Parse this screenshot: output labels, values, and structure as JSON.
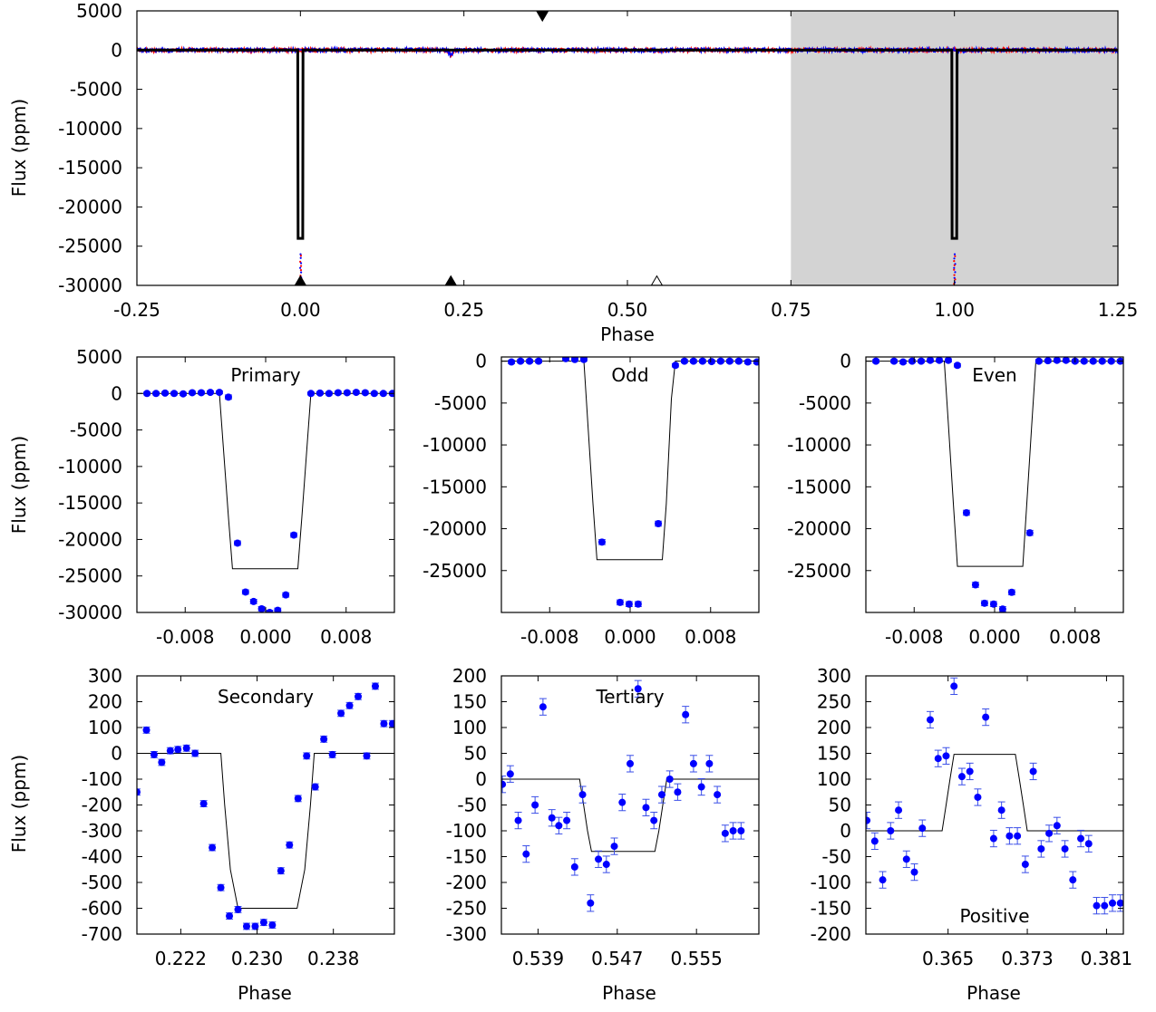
{
  "figure": {
    "ylabel": "Flux (ppm)",
    "xlabel": "Phase"
  },
  "chart_data": [
    {
      "id": "full",
      "type": "scatter",
      "title": "",
      "xlabel": "Phase",
      "ylabel": "Flux (ppm)",
      "xlim": [
        -0.25,
        1.25
      ],
      "ylim": [
        -30000,
        5000
      ],
      "xticks": [
        -0.25,
        0.0,
        0.25,
        0.5,
        0.75,
        1.0,
        1.25
      ],
      "xtick_labels": [
        "-0.25",
        "0.00",
        "0.25",
        "0.50",
        "0.75",
        "1.00",
        "1.25"
      ],
      "yticks": [
        5000,
        0,
        -5000,
        -10000,
        -15000,
        -20000,
        -25000,
        -30000
      ],
      "ytick_labels": [
        "5000",
        "0",
        "-5000",
        "-10000",
        "-15000",
        "-20000",
        "-25000",
        "-30000"
      ],
      "shaded_region": [
        0.75,
        1.25
      ],
      "shade_color": "#d3d3d3",
      "model": {
        "color": "#000000",
        "x": [
          -0.25,
          -0.004,
          -0.0035,
          0.0035,
          0.004,
          0.996,
          0.9965,
          1.0035,
          1.004,
          1.25
        ],
        "y": [
          0,
          0,
          -24000,
          -24000,
          0,
          0,
          -24000,
          -24000,
          0,
          0
        ]
      },
      "series": [
        {
          "color": "#ff0000",
          "baseline": 0,
          "scatter": 250,
          "dips": [
            [
              0.23,
              -600
            ],
            [
              0.545,
              -140
            ]
          ]
        },
        {
          "color": "#0000ff",
          "baseline": 0,
          "scatter": 250,
          "dips": [
            [
              0.23,
              -600
            ],
            [
              0.545,
              -140
            ]
          ]
        }
      ],
      "markers": [
        {
          "symbol": "triangle-down-filled",
          "x": 0.37,
          "y": 4200
        },
        {
          "symbol": "triangle-up-filled",
          "x": 0.0,
          "y": -29500
        },
        {
          "symbol": "triangle-up-filled",
          "x": 0.23,
          "y": -29500
        },
        {
          "symbol": "triangle-up-open",
          "x": 0.545,
          "y": -29500
        }
      ]
    },
    {
      "id": "primary",
      "type": "scatter",
      "title": "Primary",
      "xlabel": "",
      "ylabel": "Flux (ppm)",
      "xlim": [
        -0.0128,
        0.0128
      ],
      "ylim": [
        -30000,
        5000
      ],
      "xticks": [
        -0.008,
        0.0,
        0.008
      ],
      "xtick_labels": [
        "-0.008",
        "0.000",
        "0.008"
      ],
      "yticks": [
        5000,
        0,
        -5000,
        -10000,
        -15000,
        -20000,
        -25000,
        -30000
      ],
      "ytick_labels": [
        "5000",
        "0",
        "-5000",
        "-10000",
        "-15000",
        "-20000",
        "-25000",
        "-30000"
      ],
      "model": {
        "x": [
          -0.0128,
          -0.0046,
          -0.0042,
          -0.0037,
          -0.0033,
          0.0032,
          0.0036,
          0.0041,
          0.0045,
          0.0128
        ],
        "y": [
          0,
          0,
          -7500,
          -17000,
          -24000,
          -24000,
          -17000,
          -7500,
          0,
          0
        ]
      },
      "points": {
        "x": [
          -0.0118,
          -0.0109,
          -0.01,
          -0.0091,
          -0.0082,
          -0.0073,
          -0.0064,
          -0.0055,
          -0.0046,
          -0.0037,
          -0.0028,
          -0.002,
          -0.0012,
          -0.0004,
          0.0004,
          0.0012,
          0.002,
          0.0028,
          0.0045,
          0.0054,
          0.0063,
          0.0072,
          0.0081,
          0.009,
          0.0099,
          0.0108,
          0.0117,
          0.0126
        ],
        "y": [
          0,
          0,
          50,
          0,
          -50,
          100,
          100,
          150,
          150,
          -500,
          -20500,
          -27200,
          -28500,
          -29500,
          -30000,
          -29700,
          -27600,
          -19400,
          0,
          50,
          0,
          100,
          100,
          150,
          100,
          0,
          0,
          0
        ],
        "err": [
          200,
          200,
          200,
          200,
          200,
          200,
          200,
          200,
          200,
          300,
          300,
          300,
          300,
          300,
          300,
          300,
          300,
          300,
          200,
          200,
          200,
          200,
          200,
          200,
          200,
          200,
          200,
          200
        ]
      }
    },
    {
      "id": "odd",
      "type": "scatter",
      "title": "Odd",
      "xlabel": "",
      "ylabel": "",
      "xlim": [
        -0.0128,
        0.0128
      ],
      "ylim": [
        -30000,
        500
      ],
      "xticks": [
        -0.008,
        0.0,
        0.008
      ],
      "xtick_labels": [
        "-0.008",
        "0.000",
        "0.008"
      ],
      "yticks": [
        0,
        -5000,
        -10000,
        -15000,
        -20000,
        -25000
      ],
      "ytick_labels": [
        "0",
        "-5000",
        "-10000",
        "-15000",
        "-20000",
        "-25000"
      ],
      "model": {
        "x": [
          -0.0128,
          -0.0046,
          -0.0042,
          -0.0037,
          -0.0033,
          0.0032,
          0.0036,
          0.0041,
          0.0045,
          0.0128
        ],
        "y": [
          0,
          0,
          -7500,
          -17000,
          -23700,
          -23700,
          -17000,
          -4500,
          0,
          0
        ]
      },
      "points": {
        "x": [
          -0.0118,
          -0.0109,
          -0.01,
          -0.0091,
          -0.0064,
          -0.0055,
          -0.0046,
          -0.0028,
          -0.001,
          -0.0001,
          0.0008,
          0.0028,
          0.0045,
          0.0054,
          0.0063,
          0.0072,
          0.0081,
          0.009,
          0.0099,
          0.0108,
          0.0117,
          0.0126
        ],
        "y": [
          -100,
          0,
          0,
          0,
          300,
          200,
          200,
          -21600,
          -28800,
          -29000,
          -29000,
          -19400,
          -500,
          0,
          0,
          0,
          -50,
          0,
          0,
          0,
          -100,
          -100
        ],
        "err": [
          200,
          200,
          200,
          200,
          200,
          200,
          200,
          300,
          300,
          300,
          300,
          300,
          200,
          200,
          200,
          200,
          200,
          200,
          200,
          200,
          200,
          200
        ]
      }
    },
    {
      "id": "even",
      "type": "scatter",
      "title": "Even",
      "xlabel": "",
      "ylabel": "",
      "xlim": [
        -0.0128,
        0.0128
      ],
      "ylim": [
        -30000,
        500
      ],
      "xticks": [
        -0.008,
        0.0,
        0.008
      ],
      "xtick_labels": [
        "-0.008",
        "0.000",
        "0.008"
      ],
      "yticks": [
        0,
        -5000,
        -10000,
        -15000,
        -20000,
        -25000
      ],
      "ytick_labels": [
        "0",
        "-5000",
        "-10000",
        "-15000",
        "-20000",
        "-25000"
      ],
      "model": {
        "x": [
          -0.0128,
          -0.005,
          -0.0046,
          -0.0041,
          -0.0037,
          0.0028,
          0.0032,
          0.0037,
          0.0041,
          0.0128
        ],
        "y": [
          0,
          0,
          -7500,
          -17000,
          -24500,
          -24500,
          -17000,
          -7500,
          0,
          0
        ]
      },
      "points": {
        "x": [
          -0.0118,
          -0.01,
          -0.0091,
          -0.0082,
          -0.0073,
          -0.0064,
          -0.0055,
          -0.0046,
          -0.0037,
          -0.0028,
          -0.0019,
          -0.001,
          -0.0001,
          0.0008,
          0.0017,
          0.0035,
          0.0044,
          0.0053,
          0.0062,
          0.0071,
          0.008,
          0.0089,
          0.0098,
          0.0107,
          0.0116,
          0.0125
        ],
        "y": [
          0,
          0,
          -100,
          0,
          0,
          100,
          100,
          100,
          -500,
          -18100,
          -26700,
          -28900,
          -29000,
          -29600,
          -27600,
          -20500,
          0,
          50,
          100,
          100,
          0,
          0,
          0,
          0,
          0,
          0
        ],
        "err": [
          200,
          200,
          200,
          200,
          200,
          200,
          200,
          200,
          200,
          300,
          300,
          300,
          300,
          300,
          300,
          300,
          200,
          200,
          200,
          200,
          200,
          200,
          200,
          200,
          200,
          200
        ]
      }
    },
    {
      "id": "secondary",
      "type": "scatter",
      "title": "Secondary",
      "xlabel": "Phase",
      "ylabel": "Flux (ppm)",
      "xlim": [
        0.2174,
        0.2444
      ],
      "ylim": [
        -700,
        300
      ],
      "xticks": [
        0.222,
        0.23,
        0.238
      ],
      "xtick_labels": [
        "0.222",
        "0.230",
        "0.238"
      ],
      "yticks": [
        300,
        200,
        100,
        0,
        -100,
        -200,
        -300,
        -400,
        -500,
        -600,
        -700
      ],
      "ytick_labels": [
        "300",
        "200",
        "100",
        "0",
        "-100",
        "-200",
        "-300",
        "-400",
        "-500",
        "-600",
        "-700"
      ],
      "model": {
        "x": [
          0.2174,
          0.2262,
          0.2266,
          0.2272,
          0.228,
          0.2342,
          0.235,
          0.2356,
          0.236,
          0.2444
        ],
        "y": [
          0,
          0,
          -200,
          -450,
          -600,
          -600,
          -450,
          -200,
          0,
          0
        ]
      },
      "points": {
        "x": [
          0.2174,
          0.2184,
          0.2192,
          0.22,
          0.2209,
          0.2217,
          0.2226,
          0.2235,
          0.2244,
          0.2253,
          0.2262,
          0.2271,
          0.228,
          0.2289,
          0.2298,
          0.2307,
          0.2316,
          0.2325,
          0.2334,
          0.2343,
          0.2352,
          0.2361,
          0.237,
          0.2379,
          0.2388,
          0.2397,
          0.2406,
          0.2415,
          0.2424,
          0.2433,
          0.2442
        ],
        "y": [
          -150,
          90,
          -5,
          -35,
          10,
          15,
          20,
          0,
          -195,
          -365,
          -520,
          -630,
          -605,
          -670,
          -670,
          -655,
          -665,
          -455,
          -355,
          -175,
          -10,
          -130,
          55,
          -5,
          155,
          185,
          220,
          -10,
          260,
          115,
          115
        ],
        "err": [
          12,
          12,
          12,
          12,
          12,
          12,
          12,
          12,
          12,
          12,
          12,
          12,
          12,
          12,
          12,
          12,
          12,
          12,
          12,
          12,
          12,
          12,
          12,
          12,
          12,
          12,
          12,
          12,
          12,
          12,
          12
        ]
      }
    },
    {
      "id": "tertiary",
      "type": "scatter",
      "title": "Tertiary",
      "xlabel": "Phase",
      "ylabel": "",
      "xlim": [
        0.5353,
        0.5613
      ],
      "ylim": [
        -300,
        200
      ],
      "xticks": [
        0.539,
        0.547,
        0.555
      ],
      "xtick_labels": [
        "0.539",
        "0.547",
        "0.555"
      ],
      "yticks": [
        200,
        150,
        100,
        50,
        0,
        -50,
        -100,
        -150,
        -200,
        -250,
        -300
      ],
      "ytick_labels": [
        "200",
        "150",
        "100",
        "50",
        "0",
        "-50",
        "-100",
        "-150",
        "-200",
        "-250",
        "-300"
      ],
      "model": {
        "x": [
          0.5353,
          0.5432,
          0.5436,
          0.544,
          0.5444,
          0.5508,
          0.5512,
          0.5516,
          0.552,
          0.5613
        ],
        "y": [
          0,
          0,
          -50,
          -100,
          -140,
          -140,
          -100,
          -50,
          0,
          0
        ]
      },
      "points": {
        "x": [
          0.5354,
          0.5362,
          0.537,
          0.5378,
          0.5387,
          0.5395,
          0.5404,
          0.5411,
          0.5419,
          0.5427,
          0.5435,
          0.5443,
          0.5451,
          0.5459,
          0.5467,
          0.5475,
          0.5483,
          0.5491,
          0.5499,
          0.5507,
          0.5515,
          0.5523,
          0.5531,
          0.5539,
          0.5547,
          0.5555,
          0.5563,
          0.5571,
          0.5579,
          0.5587,
          0.5595
        ],
        "y": [
          -10,
          10,
          -80,
          -145,
          -50,
          140,
          -75,
          -90,
          -80,
          -170,
          -30,
          -240,
          -155,
          -165,
          -130,
          -45,
          30,
          175,
          -55,
          -80,
          -30,
          0,
          -25,
          125,
          30,
          -15,
          30,
          -30,
          -105,
          -100,
          -100
        ],
        "err": [
          16,
          16,
          16,
          16,
          16,
          16,
          16,
          16,
          16,
          16,
          16,
          16,
          16,
          16,
          16,
          16,
          16,
          16,
          16,
          16,
          16,
          16,
          16,
          16,
          16,
          16,
          16,
          16,
          16,
          16,
          16
        ]
      }
    },
    {
      "id": "positive",
      "type": "scatter",
      "title": "Positive",
      "xlabel": "Phase",
      "ylabel": "",
      "xlim": [
        0.3567,
        0.3827
      ],
      "ylim": [
        -200,
        300
      ],
      "xticks": [
        0.365,
        0.373,
        0.381
      ],
      "xtick_labels": [
        "0.365",
        "0.373",
        "0.381"
      ],
      "yticks": [
        300,
        250,
        200,
        150,
        100,
        50,
        0,
        -50,
        -100,
        -150,
        -200
      ],
      "ytick_labels": [
        "300",
        "250",
        "200",
        "150",
        "100",
        "50",
        "0",
        "-50",
        "-100",
        "-150",
        "-200"
      ],
      "model": {
        "x": [
          0.3567,
          0.3644,
          0.3648,
          0.3652,
          0.3656,
          0.3718,
          0.3722,
          0.3726,
          0.373,
          0.3827
        ],
        "y": [
          0,
          0,
          50,
          100,
          148,
          148,
          100,
          50,
          0,
          0
        ]
      },
      "points": {
        "x": [
          0.3568,
          0.3576,
          0.3584,
          0.3592,
          0.36,
          0.3608,
          0.3616,
          0.3624,
          0.3632,
          0.364,
          0.3648,
          0.3656,
          0.3664,
          0.3672,
          0.368,
          0.3688,
          0.3696,
          0.3704,
          0.3712,
          0.372,
          0.3728,
          0.3736,
          0.3744,
          0.3752,
          0.376,
          0.3768,
          0.3776,
          0.3784,
          0.3792,
          0.38,
          0.3808,
          0.3816,
          0.3824
        ],
        "y": [
          20,
          -20,
          -95,
          0,
          40,
          -55,
          -80,
          5,
          215,
          140,
          145,
          280,
          105,
          115,
          65,
          220,
          -15,
          40,
          -10,
          -10,
          -65,
          115,
          -35,
          -5,
          10,
          -35,
          -95,
          -15,
          -25,
          -145,
          -145,
          -140,
          -140
        ],
        "err": [
          16,
          16,
          16,
          16,
          16,
          16,
          16,
          16,
          16,
          16,
          16,
          16,
          16,
          16,
          16,
          16,
          16,
          16,
          16,
          16,
          16,
          16,
          16,
          16,
          16,
          16,
          16,
          16,
          16,
          16,
          16,
          16,
          16
        ]
      }
    }
  ]
}
